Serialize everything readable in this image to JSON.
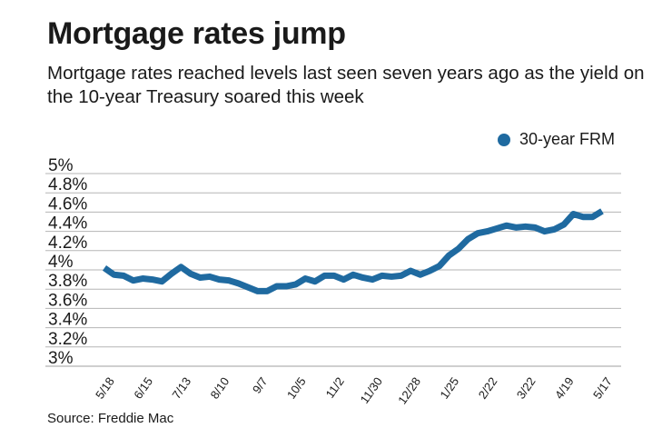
{
  "title": "Mortgage rates jump",
  "subtitle": "Mortgage rates reached levels last seen seven years ago as the yield on the 10-year Treasury soared this week",
  "source": "Source: Freddie Mac",
  "chart_data": {
    "type": "line",
    "title": "Mortgage rates jump",
    "xlabel": "",
    "ylabel": "",
    "ylim": [
      3,
      5
    ],
    "y_ticks": [
      "3%",
      "3.2%",
      "3.4%",
      "3.6%",
      "3.8%",
      "4%",
      "4.2%",
      "4.4%",
      "4.6%",
      "4.8%",
      "5%"
    ],
    "x_tick_labels": [
      "5/18",
      "6/15",
      "7/13",
      "8/10",
      "9/7",
      "10/5",
      "11/2",
      "11/30",
      "12/28",
      "1/25",
      "2/22",
      "3/22",
      "4/19",
      "5/17"
    ],
    "grid": true,
    "legend_position": "top-right",
    "x": [
      "5/18",
      "5/25",
      "6/1",
      "6/8",
      "6/15",
      "6/22",
      "6/29",
      "7/6",
      "7/13",
      "7/20",
      "7/27",
      "8/3",
      "8/10",
      "8/17",
      "8/24",
      "8/31",
      "9/7",
      "9/14",
      "9/21",
      "9/28",
      "10/5",
      "10/12",
      "10/19",
      "10/26",
      "11/2",
      "11/9",
      "11/16",
      "11/22",
      "11/30",
      "12/7",
      "12/14",
      "12/21",
      "12/28",
      "1/4",
      "1/11",
      "1/18",
      "1/25",
      "2/1",
      "2/8",
      "2/15",
      "2/22",
      "3/1",
      "3/8",
      "3/15",
      "3/22",
      "3/29",
      "4/5",
      "4/12",
      "4/19",
      "4/26",
      "5/3",
      "5/10",
      "5/17"
    ],
    "series": [
      {
        "name": "30-year FRM",
        "color": "#1f6aa0",
        "values": [
          4.02,
          3.95,
          3.94,
          3.89,
          3.91,
          3.9,
          3.88,
          3.96,
          4.03,
          3.96,
          3.92,
          3.93,
          3.9,
          3.89,
          3.86,
          3.82,
          3.78,
          3.78,
          3.83,
          3.83,
          3.85,
          3.91,
          3.88,
          3.94,
          3.94,
          3.9,
          3.95,
          3.92,
          3.9,
          3.94,
          3.93,
          3.94,
          3.99,
          3.95,
          3.99,
          4.04,
          4.15,
          4.22,
          4.32,
          4.38,
          4.4,
          4.43,
          4.46,
          4.44,
          4.45,
          4.44,
          4.4,
          4.42,
          4.47,
          4.58,
          4.55,
          4.55,
          4.61
        ]
      }
    ]
  }
}
